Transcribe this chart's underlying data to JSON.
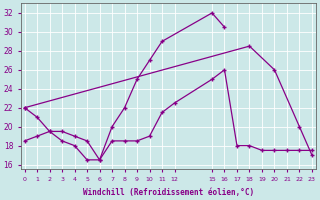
{
  "xlabel": "Windchill (Refroidissement éolien,°C)",
  "background_color": "#cce8e8",
  "line_color": "#880088",
  "yticks": [
    16,
    18,
    20,
    22,
    24,
    26,
    28,
    30,
    32
  ],
  "xtick_positions": [
    0,
    1,
    2,
    3,
    4,
    5,
    6,
    7,
    8,
    9,
    10,
    11,
    12,
    15,
    16,
    17,
    18,
    19,
    20,
    21,
    22,
    23
  ],
  "xtick_labels": [
    "0",
    "1",
    "2",
    "3",
    "4",
    "5",
    "6",
    "7",
    "8",
    "9",
    "10",
    "11",
    "12",
    "15",
    "16",
    "17",
    "18",
    "19",
    "20",
    "21",
    "22",
    "23"
  ],
  "line1_x": [
    0,
    1,
    2,
    3,
    4,
    5,
    6,
    7,
    8,
    9,
    10,
    11,
    15,
    16
  ],
  "line1_y": [
    22.0,
    21.0,
    19.5,
    18.5,
    18.0,
    16.5,
    16.5,
    20.0,
    22.0,
    25.0,
    27.0,
    29.0,
    32.0,
    30.5
  ],
  "line2_x": [
    0,
    18,
    20,
    22,
    23
  ],
  "line2_y": [
    22.0,
    28.5,
    26.0,
    20.0,
    17.0
  ],
  "line3_x": [
    0,
    1,
    2,
    3,
    4,
    5,
    6,
    7,
    8,
    9,
    10,
    11,
    12,
    15,
    16,
    17,
    18,
    19,
    20,
    21,
    22,
    23
  ],
  "line3_y": [
    18.5,
    19.0,
    19.5,
    19.5,
    19.0,
    18.5,
    16.5,
    18.5,
    18.5,
    18.5,
    19.0,
    21.5,
    22.5,
    25.0,
    26.0,
    18.0,
    18.0,
    17.5,
    17.5,
    17.5,
    17.5,
    17.5
  ],
  "xlim": [
    -0.3,
    23.3
  ],
  "ylim": [
    15.5,
    33.0
  ]
}
